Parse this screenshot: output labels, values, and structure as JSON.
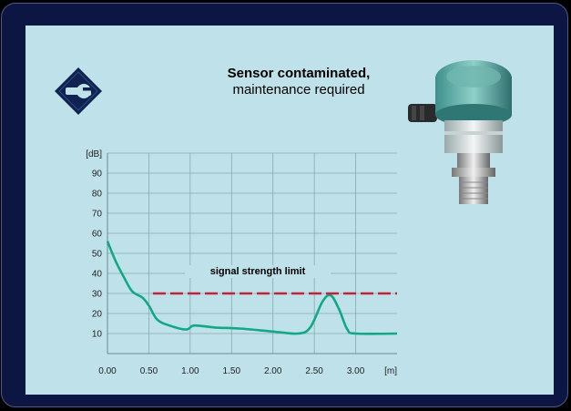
{
  "message": {
    "title": "Sensor contaminated,",
    "subtitle": "maintenance required"
  },
  "icons": {
    "status": "maintenance-wrench-icon",
    "device": "radar-level-sensor"
  },
  "colors": {
    "background": "#0d1642",
    "panel": "#bfe2ea",
    "signal_curve": "#12a884",
    "limit_line": "#c0233a",
    "status_icon": "#10224f"
  },
  "chart_data": {
    "type": "line",
    "xlabel": "[m]",
    "ylabel": "[dB]",
    "xlim": [
      0,
      3.5
    ],
    "ylim": [
      0,
      100
    ],
    "x_ticks": [
      "0.00",
      "0.50",
      "1.00",
      "1.50",
      "2.00",
      "2.50",
      "3.00"
    ],
    "y_ticks": [
      "10",
      "20",
      "30",
      "40",
      "50",
      "60",
      "70",
      "80",
      "90"
    ],
    "grid": true,
    "series": [
      {
        "x": [
          0.0,
          0.1,
          0.2,
          0.3,
          0.42,
          0.5,
          0.6,
          0.75,
          0.95,
          1.05,
          1.3,
          1.6,
          2.0,
          2.3,
          2.45,
          2.6,
          2.7,
          2.8,
          2.9,
          3.0,
          3.5
        ],
        "y": [
          56,
          46,
          38,
          31,
          28,
          24,
          17,
          14,
          12,
          14,
          13,
          12.5,
          11,
          10,
          13,
          26,
          29,
          22,
          12,
          10,
          10
        ]
      },
      {
        "x": [
          0.55,
          3.5
        ],
        "y": [
          30,
          30
        ]
      }
    ],
    "annotations": [
      {
        "text": "signal strength limit"
      }
    ]
  }
}
